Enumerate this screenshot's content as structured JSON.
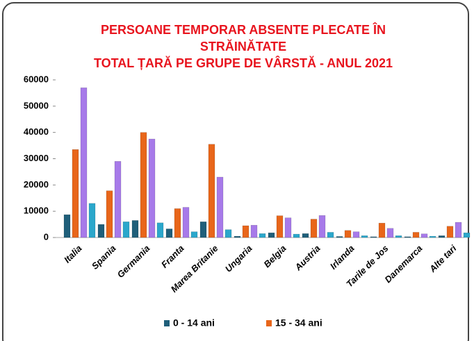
{
  "chart_data": {
    "type": "bar",
    "title": [
      "PERSOANE TEMPORAR ABSENTE PLECATE ÎN",
      "STRĂINĂTATE",
      "TOTAL ȚARĂ PE GRUPE DE VÂRSTĂ - ANUL 2021"
    ],
    "categories": [
      "Italia",
      "Spania",
      "Germania",
      "Franta",
      "Marea Britanie",
      "Ungaria",
      "Belgia",
      "Austria",
      "Irlanda",
      "Tarile de Jos",
      "Danemarca",
      "Alte tari"
    ],
    "series": [
      {
        "name": "0 - 14 ani",
        "color": "#1f5f7a",
        "values": [
          8700,
          5000,
          6500,
          3300,
          6000,
          500,
          1800,
          1500,
          400,
          300,
          300,
          700
        ]
      },
      {
        "name": "15 - 34 ani",
        "color": "#e8661a",
        "values": [
          33500,
          17800,
          40000,
          11000,
          35500,
          4500,
          8300,
          7000,
          2700,
          5500,
          2000,
          4300
        ]
      },
      {
        "color": "#a77ae9",
        "values": [
          57000,
          29000,
          37500,
          11500,
          23000,
          4700,
          7500,
          8400,
          2200,
          3500,
          1400,
          5800
        ]
      },
      {
        "color": "#2ba7cb",
        "values": [
          13000,
          6000,
          5600,
          2200,
          3000,
          1500,
          1300,
          2000,
          700,
          700,
          500,
          1800
        ]
      }
    ],
    "ylim": [
      0,
      60000
    ],
    "yticks": [
      0,
      10000,
      20000,
      30000,
      40000,
      50000,
      60000
    ],
    "grid": false
  }
}
